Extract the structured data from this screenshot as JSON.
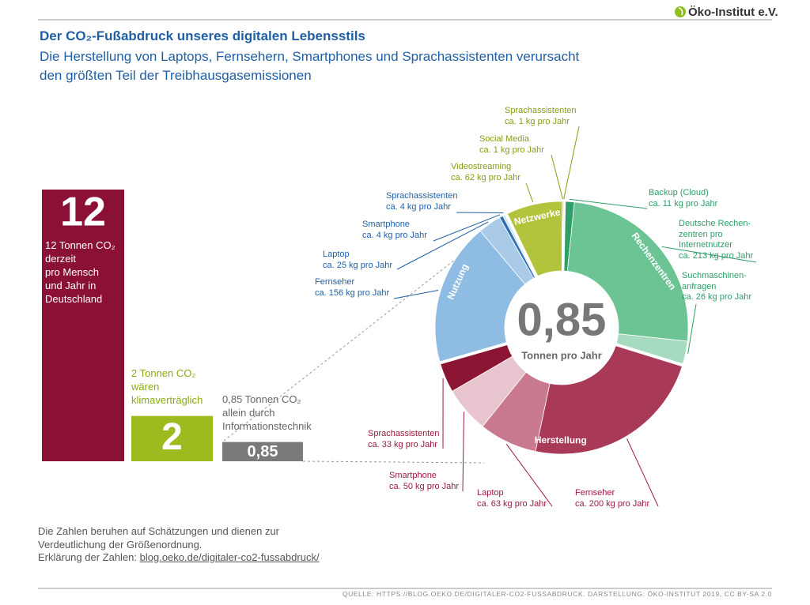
{
  "header": {
    "logo": "Öko-Institut e.V.",
    "title": "Der CO₂-Fußabdruck unseres digitalen Lebensstils",
    "subtitle": "Die Herstellung von Laptops, Fernsehern, Smartphones und Sprachassistenten verursacht\nden größten Teil der Treibhausgasemissionen"
  },
  "chart_data": [
    {
      "type": "bar",
      "categories": [
        "12 Tonnen CO₂\nderzeit\npro Mensch\nund Jahr in\nDeutschland",
        "2 Tonnen CO₂\nwären\nklimaverträglich",
        "0,85 Tonnen CO₂\nallein durch\nInformationstechnik"
      ],
      "values": [
        12,
        2,
        0.85
      ],
      "value_labels": [
        "12",
        "2",
        "0,85"
      ],
      "colors": [
        "#8b1035",
        "#9dbb1f",
        "#7a7a7a"
      ],
      "ylim": [
        0,
        12
      ]
    },
    {
      "type": "donut",
      "center_value_label": "0,85",
      "center_label": "Tonnen pro Jahr",
      "center_value": 0.85,
      "groups": [
        {
          "name": "Rechenzentren",
          "label_color": "#2e9e68",
          "colors": [
            "#2f9e6a",
            "#6cc495",
            "#a6dbbf"
          ],
          "categories": [
            "Backup (Cloud)",
            "Deutsche Rechen-\nzentren pro\nInternetnutzer",
            "Suchmaschinen-\nanfragen"
          ],
          "values": [
            11,
            213,
            26
          ],
          "value_labels": [
            "ca. 11 kg pro Jahr",
            "ca. 213 kg pro Jahr",
            "ca. 26 kg pro Jahr"
          ]
        },
        {
          "name": "Herstellung",
          "label_color": "#9b1b3c",
          "colors": [
            "#a83a57",
            "#c9798e",
            "#e8c4ce",
            "#8b1433"
          ],
          "categories": [
            "Fernseher",
            "Laptop",
            "Smartphone",
            "Sprachassistenten"
          ],
          "values": [
            200,
            63,
            50,
            33
          ],
          "value_labels": [
            "ca. 200 kg pro Jahr",
            "ca. 63 kg pro Jahr",
            "ca. 50 kg pro Jahr",
            "ca. 33 kg pro Jahr"
          ]
        },
        {
          "name": "Nutzung",
          "label_color": "#1f5fa6",
          "colors": [
            "#8ebce2",
            "#a9cbe8",
            "#2f70b5",
            "#cfe1f2"
          ],
          "categories": [
            "Fernseher",
            "Laptop",
            "Smartphone",
            "Sprachassistenten"
          ],
          "values": [
            156,
            25,
            4,
            4
          ],
          "value_labels": [
            "ca. 156 kg pro Jahr",
            "ca. 25 kg pro Jahr",
            "ca. 4 kg pro Jahr",
            "ca. 4 kg pro Jahr"
          ]
        },
        {
          "name": "Netzwerke",
          "label_color": "#8a9a16",
          "colors": [
            "#b3c43c",
            "#7f9018",
            "#dbe49a"
          ],
          "categories": [
            "Videostreaming",
            "Social Media",
            "Sprachassistenten"
          ],
          "values": [
            62,
            1,
            1
          ],
          "value_labels": [
            "ca. 62 kg pro Jahr",
            "ca. 1 kg pro Jahr",
            "ca. 1 kg pro Jahr"
          ]
        }
      ]
    }
  ],
  "notes": {
    "text": "Die Zahlen beruhen auf Schätzungen und dienen zur\nVerdeutlichung der Größenordnung.",
    "link_prefix": "Erklärung der Zahlen:",
    "link": "blog.oeko.de/digitaler-co2-fussabdruck/"
  },
  "source": "QUELLE: HTTPS://BLOG.OEKO.DE/DIGITALER-CO2-FUSSABDRUCK. DARSTELLUNG: ÖKO-INSTITUT 2019, CC BY-SA 2.0"
}
